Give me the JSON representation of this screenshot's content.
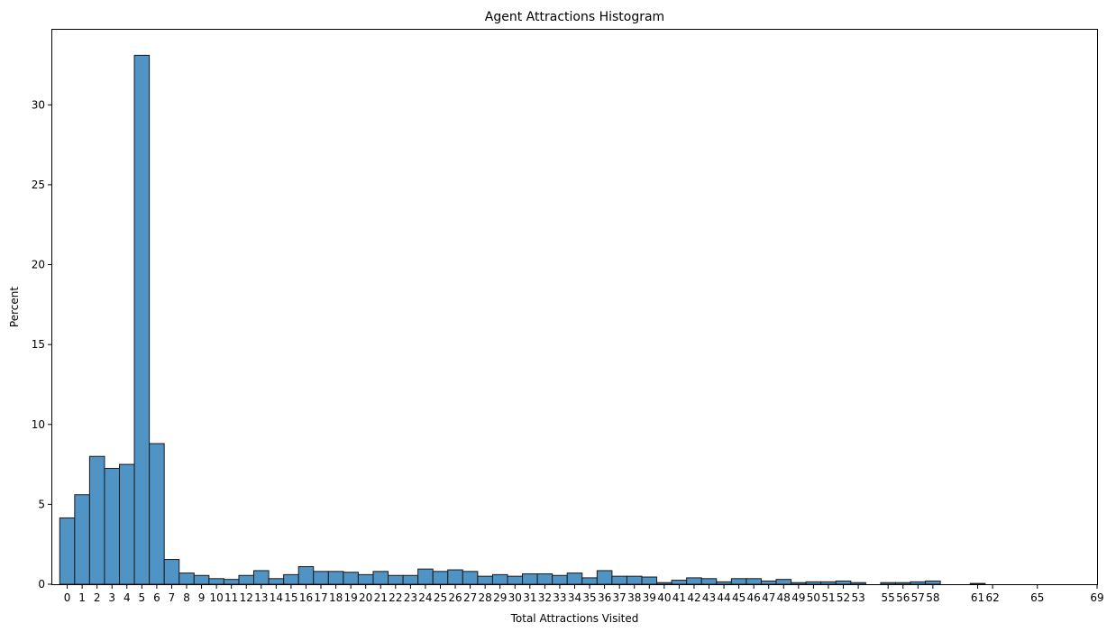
{
  "chart_data": {
    "type": "bar",
    "title": "Agent Attractions Histogram",
    "xlabel": "Total Attractions Visited",
    "ylabel": "Percent",
    "xlim": [
      -1,
      69
    ],
    "ylim": [
      0,
      34.7
    ],
    "yticks": [
      0,
      5,
      10,
      15,
      20,
      25,
      30
    ],
    "xticks": [
      0,
      1,
      2,
      3,
      4,
      5,
      6,
      7,
      8,
      9,
      10,
      11,
      12,
      13,
      14,
      15,
      16,
      17,
      18,
      19,
      20,
      21,
      22,
      23,
      24,
      25,
      26,
      27,
      28,
      29,
      30,
      31,
      32,
      33,
      34,
      35,
      36,
      37,
      38,
      39,
      40,
      41,
      42,
      43,
      44,
      45,
      46,
      47,
      48,
      49,
      50,
      51,
      52,
      53,
      55,
      56,
      57,
      58,
      61,
      62,
      65,
      69
    ],
    "bar_color": "#4f94c4",
    "edge_color": "#1a1a1a",
    "grid": false,
    "bins": {
      "x": [
        0,
        1,
        2,
        3,
        4,
        5,
        6,
        7,
        8,
        9,
        10,
        11,
        12,
        13,
        14,
        15,
        16,
        17,
        18,
        19,
        20,
        21,
        22,
        23,
        24,
        25,
        26,
        27,
        28,
        29,
        30,
        31,
        32,
        33,
        34,
        35,
        36,
        37,
        38,
        39,
        40,
        41,
        42,
        43,
        44,
        45,
        46,
        47,
        48,
        49,
        50,
        51,
        52,
        53,
        54,
        55,
        56,
        57,
        58,
        59,
        60,
        61,
        62,
        63,
        64,
        65,
        66,
        67,
        68
      ],
      "values": [
        4.15,
        5.6,
        8.0,
        7.25,
        7.5,
        33.1,
        8.8,
        1.55,
        0.7,
        0.55,
        0.35,
        0.3,
        0.55,
        0.85,
        0.35,
        0.6,
        1.1,
        0.8,
        0.8,
        0.75,
        0.6,
        0.8,
        0.55,
        0.55,
        0.95,
        0.8,
        0.9,
        0.8,
        0.5,
        0.6,
        0.5,
        0.65,
        0.65,
        0.55,
        0.7,
        0.4,
        0.85,
        0.5,
        0.5,
        0.45,
        0.1,
        0.25,
        0.4,
        0.35,
        0.15,
        0.35,
        0.35,
        0.2,
        0.3,
        0.1,
        0.15,
        0.15,
        0.2,
        0.1,
        0.0,
        0.1,
        0.1,
        0.15,
        0.2,
        0.0,
        0.0,
        0.05,
        0.0,
        0.0,
        0.0,
        0.0,
        0.0,
        0.0,
        0.0
      ]
    }
  }
}
